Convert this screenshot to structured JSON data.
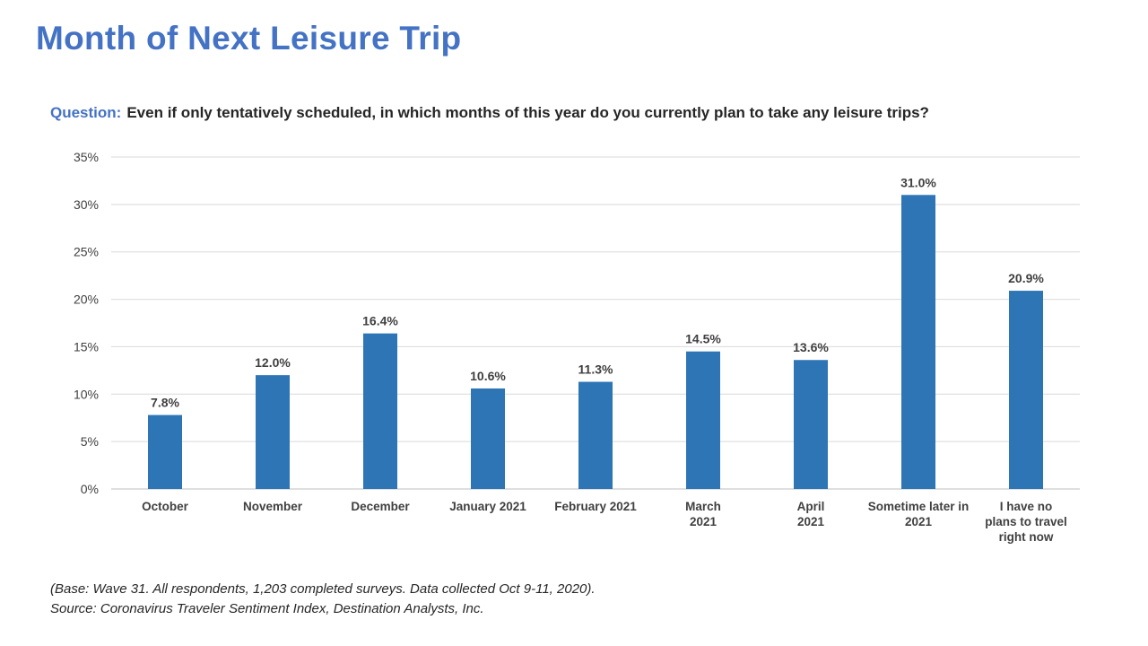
{
  "slide": {
    "title": "Month of Next Leisure Trip",
    "question_label": "Question:",
    "question_text": "Even if only tentatively  scheduled, in which months of this year do you currently plan to take any leisure trips?",
    "footnote_base": "(Base: Wave 31. All respondents, 1,203  completed surveys. Data collected Oct 9-11,  2020).",
    "footnote_source": "Source: Coronavirus Traveler Sentiment Index, Destination Analysts, Inc."
  },
  "chart_data": {
    "type": "bar",
    "categories": [
      "October",
      "November",
      "December",
      "January 2021",
      "February 2021",
      "March 2021",
      "April 2021",
      "Sometime later in 2021",
      "I have no plans to travel right now"
    ],
    "category_lines": [
      [
        "October"
      ],
      [
        "November"
      ],
      [
        "December"
      ],
      [
        "January 2021"
      ],
      [
        "February 2021"
      ],
      [
        "March",
        "2021"
      ],
      [
        "April",
        "2021"
      ],
      [
        "Sometime later in",
        "2021"
      ],
      [
        "I have no",
        "plans to travel",
        "right now"
      ]
    ],
    "values": [
      7.8,
      12.0,
      16.4,
      10.6,
      11.3,
      14.5,
      13.6,
      31.0,
      20.9
    ],
    "value_labels": [
      "7.8%",
      "12.0%",
      "16.4%",
      "10.6%",
      "11.3%",
      "14.5%",
      "13.6%",
      "31.0%",
      "20.9%"
    ],
    "ylim": [
      0,
      35
    ],
    "y_ticks": [
      0,
      5,
      10,
      15,
      20,
      25,
      30,
      35
    ],
    "y_tick_labels": [
      "0%",
      "5%",
      "10%",
      "15%",
      "20%",
      "25%",
      "30%",
      "35%"
    ],
    "grid": true,
    "bar_color": "#2E75B6",
    "grid_color": "#D9D9D9",
    "xlabel": "",
    "ylabel": ""
  }
}
